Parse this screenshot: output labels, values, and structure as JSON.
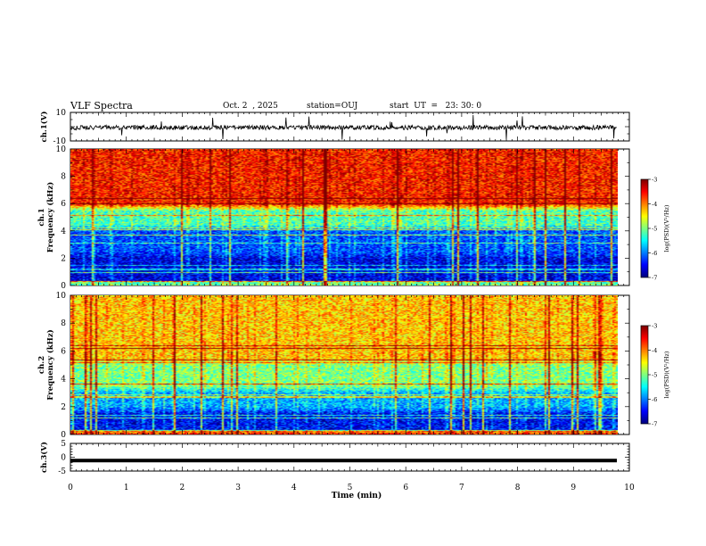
{
  "header": {
    "title": "VLF Spectra",
    "date": "Oct. 2  , 2025",
    "station": "station=OUJ",
    "start": "start  UT  =   23: 30: 0"
  },
  "chart_data": [
    {
      "type": "line",
      "name": "ch1-waveform",
      "ylabel": "ch.1(V)",
      "ylim": [
        -10,
        10
      ],
      "yticks": [
        "10",
        "-10"
      ],
      "xlim": [
        0,
        10
      ],
      "baseline": 0,
      "amplitude": "noise with impulsive spikes",
      "color": "#000000"
    },
    {
      "type": "heatmap",
      "name": "ch1-spectrogram",
      "ylabel": "ch.1\nFrequency  (kHz)",
      "ylabel_lines": [
        "ch.1",
        "Frequency  (kHz)"
      ],
      "ylim": [
        0,
        10
      ],
      "yticks": [
        "0",
        "2",
        "4",
        "6",
        "8",
        "10"
      ],
      "xlim": [
        0,
        9.8
      ],
      "colorbar": {
        "label": "log(PSD)(V²/Hz)",
        "ticks": [
          "-3",
          "-4",
          "-5",
          "-6",
          "-7"
        ],
        "range": [
          -7,
          -3
        ]
      },
      "bands_khz": [
        {
          "from": 0,
          "to": 2.5,
          "level": -6.6
        },
        {
          "from": 2.5,
          "to": 4.5,
          "level": -6.2
        },
        {
          "from": 4.5,
          "to": 6.0,
          "level": -5.2
        },
        {
          "from": 6.0,
          "to": 10.0,
          "level": -3.6
        }
      ]
    },
    {
      "type": "heatmap",
      "name": "ch2-spectrogram",
      "ylabel": "ch.2\nFrequency  (kHz)",
      "ylabel_lines": [
        "ch.2",
        "Frequency  (kHz)"
      ],
      "ylim": [
        0,
        10
      ],
      "yticks": [
        "0",
        "2",
        "4",
        "6",
        "8",
        "10"
      ],
      "xlim": [
        0,
        9.8
      ],
      "colorbar": {
        "label": "log(PSD)(V²/Hz)",
        "ticks": [
          "-3",
          "-4",
          "-5",
          "-6",
          "-7"
        ],
        "range": [
          -7,
          -3
        ]
      },
      "bands_khz": [
        {
          "from": 0,
          "to": 2.0,
          "level": -6.5
        },
        {
          "from": 2.0,
          "to": 3.5,
          "level": -5.8
        },
        {
          "from": 3.5,
          "to": 5.5,
          "level": -5.0
        },
        {
          "from": 5.5,
          "to": 10.0,
          "level": -4.3
        }
      ]
    },
    {
      "type": "line",
      "name": "ch3-waveform",
      "ylabel": "ch.3(V)",
      "ylim": [
        -5,
        5
      ],
      "yticks": [
        "5",
        "0",
        "-5"
      ],
      "xlim": [
        0,
        9.8
      ],
      "baseline": -1.2,
      "amplitude": "constant thick line",
      "color": "#000000",
      "xlabel": "Time  (min)",
      "xticks": [
        "0",
        "1",
        "2",
        "3",
        "4",
        "5",
        "6",
        "7",
        "8",
        "9",
        "10"
      ]
    }
  ]
}
